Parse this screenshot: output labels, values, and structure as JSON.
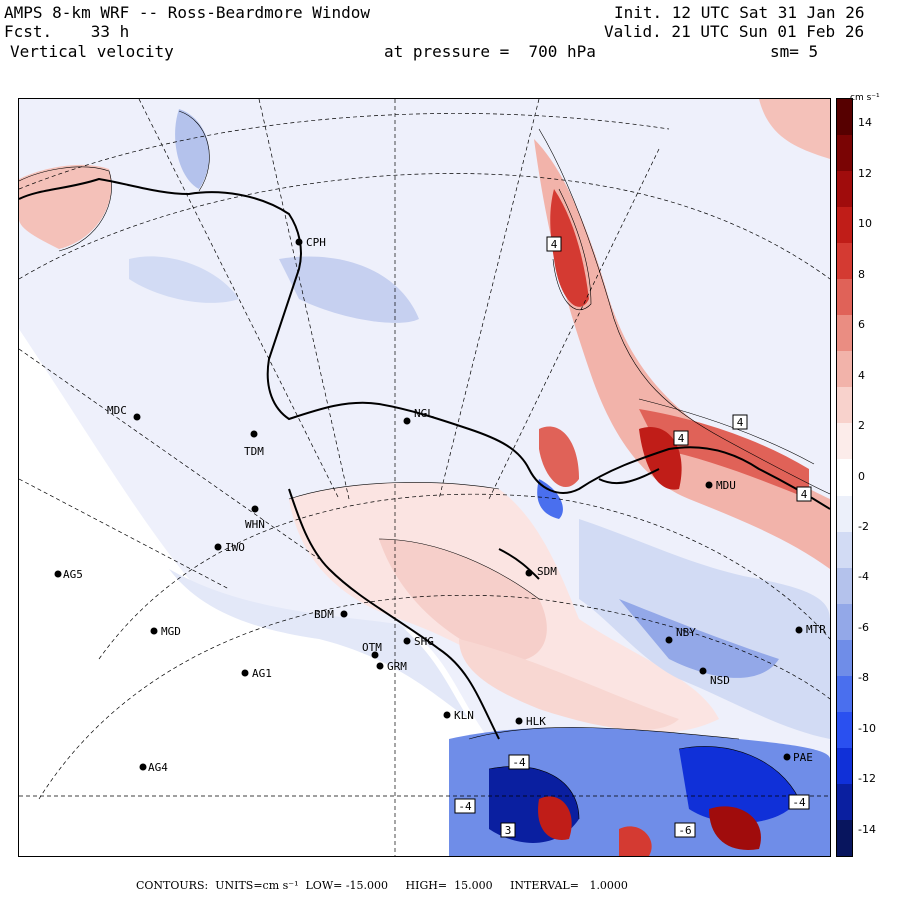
{
  "header": {
    "line1_left": "AMPS 8-km WRF -- Ross-Beardmore Window",
    "line1_right": "Init. 12 UTC Sat 31 Jan 26",
    "line2_left": "Fcst.    33 h",
    "line2_right": "Valid. 21 UTC Sun 01 Feb 26",
    "line3_left": "Vertical velocity",
    "line3_mid": "at pressure =  700 hPa",
    "line3_right": "sm= 5"
  },
  "colorbar": {
    "units": "cm s⁻¹",
    "ticks": [
      "14",
      "12",
      "10",
      "8",
      "6",
      "4",
      "2",
      "0",
      "-2",
      "-4",
      "-6",
      "-8",
      "-10",
      "-12",
      "-14"
    ],
    "range": [
      -15,
      15
    ],
    "colors": [
      "#08155e",
      "#0a1fa0",
      "#1030d8",
      "#2a50f0",
      "#4a6fee",
      "#6f8de8",
      "#93a8e8",
      "#b4c2ec",
      "#d2dbf4",
      "#ecf0fa",
      "#ffffff",
      "#fcecea",
      "#f8d2cc",
      "#f2b3aa",
      "#ea8d82",
      "#e06258",
      "#d43a32",
      "#c01d18",
      "#a00c0c",
      "#7a0404",
      "#560000"
    ]
  },
  "stations": [
    {
      "id": "CPH",
      "label": "CPH"
    },
    {
      "id": "NGL",
      "label": "NGL"
    },
    {
      "id": "MDC",
      "label": "MDC"
    },
    {
      "id": "TDM",
      "label": "TDM"
    },
    {
      "id": "WHN",
      "label": "WHN"
    },
    {
      "id": "IWO",
      "label": "IWO"
    },
    {
      "id": "AG5",
      "label": "AG5"
    },
    {
      "id": "SDM",
      "label": "SDM"
    },
    {
      "id": "BDM",
      "label": "BDM"
    },
    {
      "id": "MGD",
      "label": "MGD"
    },
    {
      "id": "OTM",
      "label": "OTM"
    },
    {
      "id": "SHG",
      "label": "SHG"
    },
    {
      "id": "GRM",
      "label": "GRM"
    },
    {
      "id": "AG1",
      "label": "AG1"
    },
    {
      "id": "NBY",
      "label": "NBY"
    },
    {
      "id": "MTR",
      "label": "MTR"
    },
    {
      "id": "NSD",
      "label": "NSD"
    },
    {
      "id": "KLN",
      "label": "KLN"
    },
    {
      "id": "HLK",
      "label": "HLK"
    },
    {
      "id": "AG4",
      "label": "AG4"
    },
    {
      "id": "PAE",
      "label": "PAE"
    },
    {
      "id": "MDU",
      "label": "MDU"
    }
  ],
  "contour_labels": [
    "4",
    "4",
    "4",
    "4",
    "-4",
    "-4",
    "-4",
    "3",
    "-6"
  ],
  "footer": {
    "contours_label": "CONTOURS:",
    "units_label": "UNITS=cm s⁻¹",
    "low": "LOW= -15.000",
    "high": "HIGH=  15.000",
    "interval": "INTERVAL=   1.0000"
  }
}
